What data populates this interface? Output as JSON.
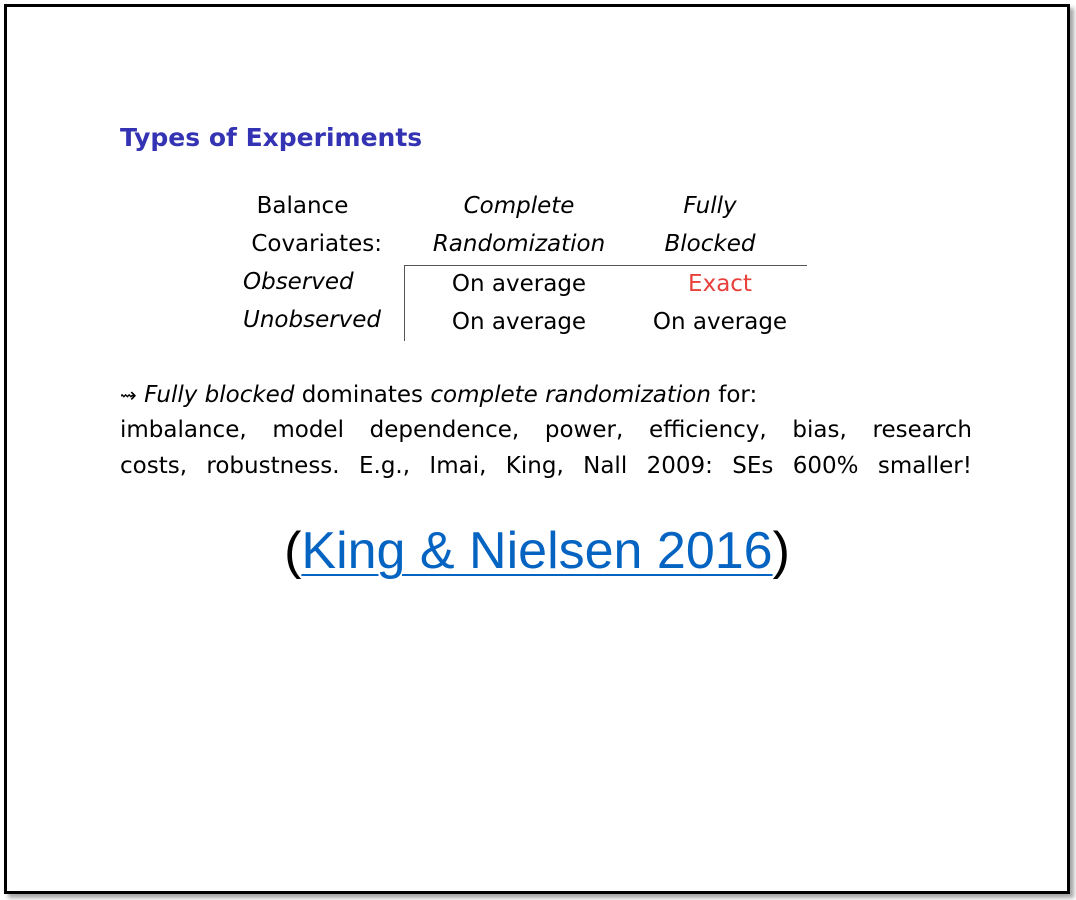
{
  "slide": {
    "title": "Types of Experiments",
    "table": {
      "header_row1": {
        "label": "Balance",
        "col1": "Complete",
        "col2": "Fully"
      },
      "header_row2": {
        "label": "Covariates:",
        "col1": "Randomization",
        "col2": "Blocked"
      },
      "rows": [
        {
          "label": "Observed",
          "col1": "On average",
          "col2": "Exact"
        },
        {
          "label": "Unobserved",
          "col1": "On average",
          "col2": "On average"
        }
      ]
    },
    "paragraph": {
      "arrow_symbol": "⇝",
      "line1_italic_a": "Fully blocked",
      "line1_text_b": " dominates ",
      "line1_italic_c": "complete randomization",
      "line1_text_d": " for:",
      "line2": "imbalance, model dependence, power, efficiency, bias, research",
      "line3": "costs, robustness. E.g., Imai, King, Nall 2009: SEs 600% smaller!"
    },
    "citation": {
      "open_paren": "(",
      "link_text": "King & Nielsen 2016",
      "close_paren": ")"
    },
    "colors": {
      "title": "#3333b3",
      "exact": "#e8403a",
      "link": "#0563c1"
    }
  }
}
